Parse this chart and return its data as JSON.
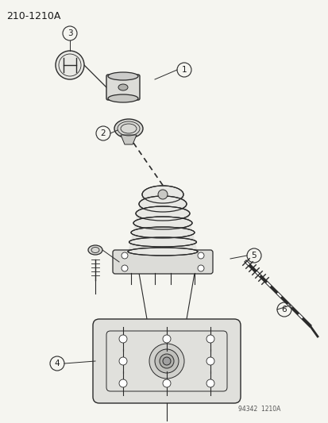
{
  "title": "210-1210A",
  "watermark": "94342  1210A",
  "bg_color": "#f5f5f0",
  "line_color": "#2a2a2a",
  "label_color": "#1a1a1a",
  "title_fontsize": 9,
  "label_fontsize": 7.5
}
